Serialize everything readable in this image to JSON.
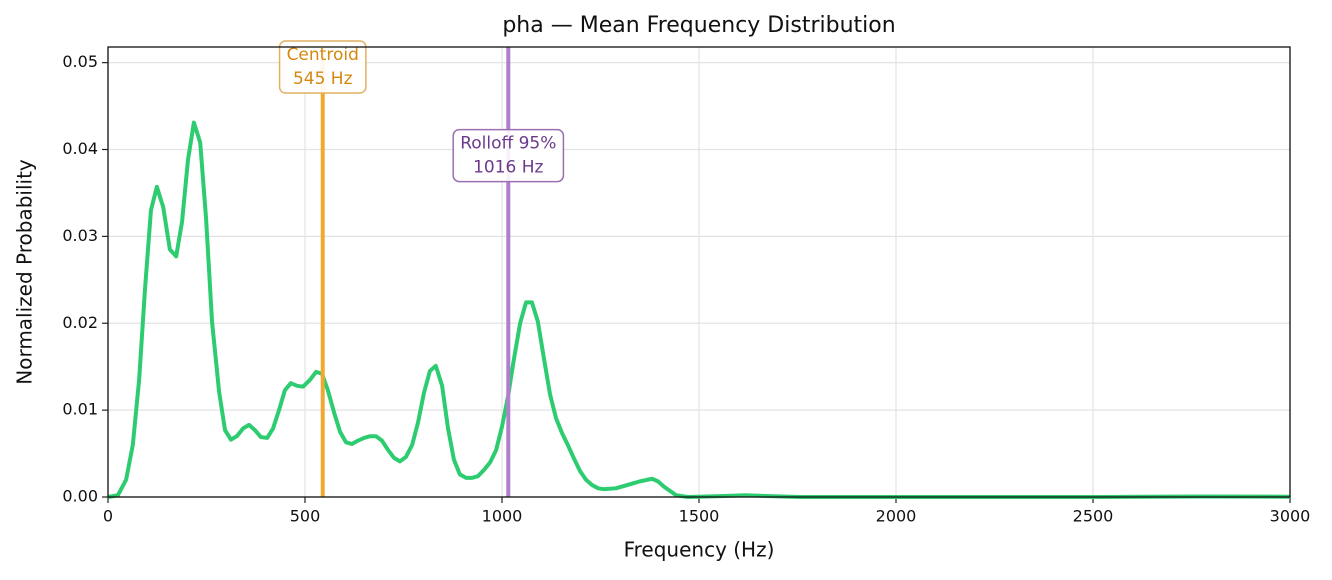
{
  "chart_data": {
    "type": "line",
    "title": "pha  —  Mean Frequency Distribution",
    "xlabel": "Frequency (Hz)",
    "ylabel": "Normalized Probability",
    "xlim": [
      0,
      3000
    ],
    "ylim": [
      0,
      0.0518
    ],
    "xticks": [
      0,
      500,
      1000,
      1500,
      2000,
      2500,
      3000
    ],
    "yticks": [
      {
        "value": 0,
        "label": "0.00"
      },
      {
        "value": 0.01,
        "label": "0.01"
      },
      {
        "value": 0.02,
        "label": "0.02"
      },
      {
        "value": 0.03,
        "label": "0.03"
      },
      {
        "value": 0.04,
        "label": "0.04"
      },
      {
        "value": 0.05,
        "label": "0.05"
      }
    ],
    "grid": true,
    "series": [
      {
        "color": "#2ecc71",
        "x": [
          0,
          25,
          46,
          63,
          79,
          94,
          109,
          124,
          140,
          157,
          173,
          188,
          203,
          218,
          234,
          249,
          264,
          282,
          297,
          312,
          327,
          343,
          358,
          373,
          388,
          404,
          419,
          434,
          449,
          464,
          480,
          495,
          513,
          528,
          543,
          558,
          574,
          589,
          604,
          619,
          635,
          650,
          665,
          680,
          695,
          711,
          726,
          741,
          756,
          772,
          787,
          802,
          817,
          832,
          848,
          863,
          878,
          893,
          909,
          924,
          939,
          954,
          970,
          985,
          1000,
          1015,
          1030,
          1046,
          1061,
          1076,
          1091,
          1107,
          1122,
          1137,
          1152,
          1168,
          1183,
          1198,
          1213,
          1228,
          1244,
          1259,
          1289,
          1320,
          1350,
          1381,
          1396,
          1411,
          1442,
          1472,
          1553,
          1617,
          1680,
          1756,
          2518,
          2772,
          3000
        ],
        "values": [
          0,
          0.0002,
          0.002,
          0.006,
          0.0135,
          0.024,
          0.033,
          0.0357,
          0.0334,
          0.0285,
          0.0277,
          0.0317,
          0.0388,
          0.0431,
          0.0408,
          0.032,
          0.0202,
          0.0121,
          0.0077,
          0.0066,
          0.007,
          0.0079,
          0.0083,
          0.0077,
          0.0069,
          0.0068,
          0.0079,
          0.01,
          0.0123,
          0.0131,
          0.0128,
          0.0127,
          0.0135,
          0.0144,
          0.0142,
          0.0123,
          0.0097,
          0.0075,
          0.0063,
          0.0061,
          0.0065,
          0.0068,
          0.007,
          0.007,
          0.0065,
          0.0054,
          0.0045,
          0.0041,
          0.0046,
          0.006,
          0.0086,
          0.012,
          0.0145,
          0.0151,
          0.0128,
          0.0079,
          0.0043,
          0.0026,
          0.0022,
          0.0022,
          0.0024,
          0.0031,
          0.004,
          0.0054,
          0.0081,
          0.0115,
          0.0158,
          0.02,
          0.0224,
          0.0224,
          0.0202,
          0.0158,
          0.0118,
          0.0091,
          0.0074,
          0.0059,
          0.0044,
          0.003,
          0.002,
          0.0014,
          0.001,
          0.0009,
          0.001,
          0.0014,
          0.0018,
          0.0021,
          0.0018,
          0.0012,
          0.0002,
          0,
          0.0001,
          0.0002,
          0.0001,
          0,
          0,
          6e-05,
          3e-05
        ]
      }
    ],
    "vlines": [
      {
        "name": "Centroid",
        "value": 545,
        "label": "545 Hz",
        "color": "#f0a830",
        "text_color": "#d4880f",
        "box_color": "#e2b060",
        "label_y": 0.0495
      },
      {
        "name": "Rolloff 95%",
        "value": 1016,
        "label": "1016 Hz",
        "color": "#b07fcc",
        "text_color": "#6b3a8c",
        "box_color": "#9b6fb2",
        "label_y": 0.0393
      }
    ]
  }
}
